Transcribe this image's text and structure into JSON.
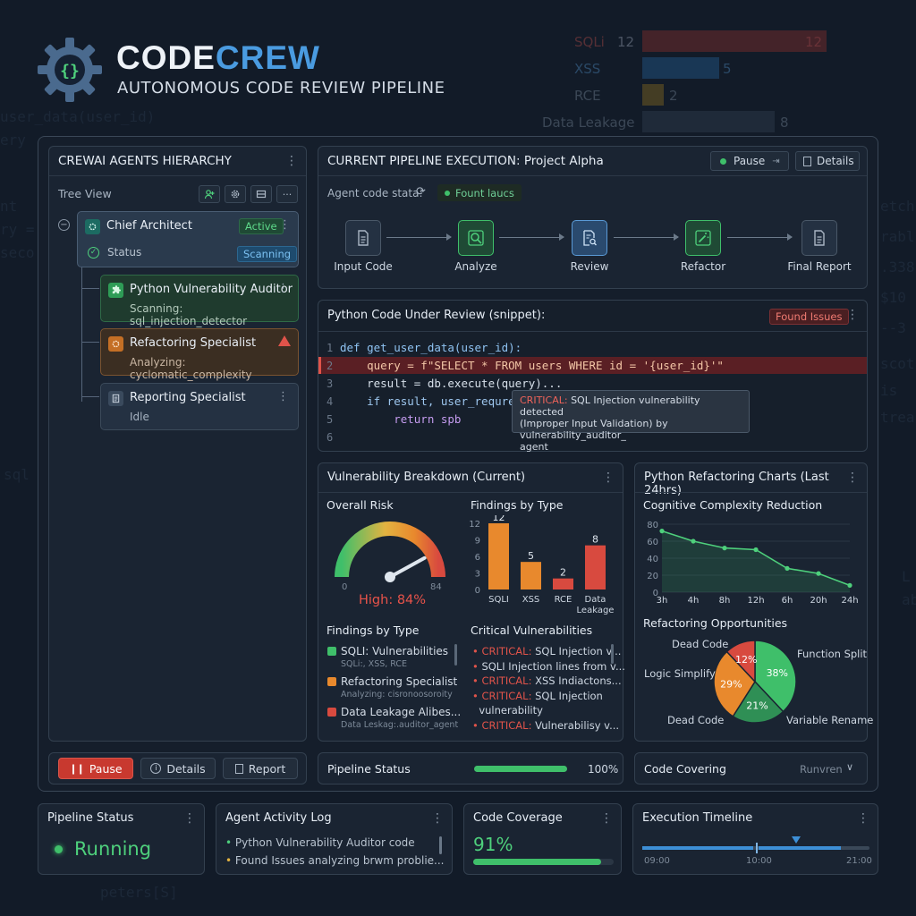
{
  "brand": {
    "name_a": "CODE",
    "name_b": "CREW",
    "tagline": "AUTONOMOUS CODE REVIEW PIPELINE"
  },
  "bg_chart": {
    "rows": [
      {
        "label": "SQLi",
        "value": "12",
        "value2": "12"
      },
      {
        "label": "XSS",
        "value": "5"
      },
      {
        "label": "RCE",
        "value": "2"
      },
      {
        "label": "Data Leakage",
        "value": "8"
      }
    ]
  },
  "bg_code": {
    "line1": "user_data(user_id)",
    "line2": "ery",
    "line3": "nt",
    "line4": "ry =",
    "line5": "seco",
    "line6": "sql",
    "line7": "peters[S]",
    "r1": "etch",
    "r2": "rabl",
    "r3": ".338",
    "r4": "$10",
    "r5": "--3",
    "r6": "scot",
    "r7": "is",
    "r8": "trea",
    "r9": "L",
    "r10": "ab"
  },
  "agents": {
    "title": "CREWAI AGENTS HIERARCHY",
    "tree_view": "Tree View",
    "chief": {
      "name": "Chief Architect",
      "badge": "Active",
      "status_label": "Status",
      "status_value": "Scanning"
    },
    "items": [
      {
        "name": "Python Vulnerability Auditor",
        "status": "Scanning: sql_injection_detector"
      },
      {
        "name": "Refactoring Specialist",
        "status": "Analyzing: cyclomatic_complexity"
      },
      {
        "name": "Reporting Specialist",
        "status": "Idle"
      }
    ]
  },
  "pipeline": {
    "title": "CURRENT PIPELINE EXECUTION: Project Alpha",
    "pause": "Pause",
    "details": "Details",
    "state_label": "Agent code stata:",
    "state_value": "Fount laucs",
    "steps": [
      "Input Code",
      "Analyze",
      "Review",
      "Refactor",
      "Final Report"
    ]
  },
  "code_review": {
    "title": "Python Code Under Review (snippet):",
    "badge": "Found Issues",
    "lines": [
      "def get_user_data(user_id):",
      "    query = f\"SELECT * FROM users WHERE id = '{user_id}'\"",
      "    result = db.execute(query)...",
      "    if result, user_requrese=",
      "        return spb",
      ""
    ],
    "numbers": [
      "1",
      "2",
      "3",
      "4",
      "5",
      "6"
    ],
    "tooltip_tag": "CRITICAL:",
    "tooltip_text": "SQL Injection vulnerability detected",
    "tooltip_line2": "(Improper Input Validation) by vulnerability_auditor_",
    "tooltip_line3": "agent"
  },
  "vuln": {
    "title": "Vulnerability Breakdown (Current)",
    "overall_label": "Overall Risk",
    "gauge_min": "0",
    "gauge_max": "84",
    "gauge_value": 0.84,
    "risk_text": "High: 84%",
    "findings_title": "Findings by Type",
    "bar_chart": {
      "type": "bar",
      "title": "Findings by Type",
      "categories": [
        "SQLI",
        "XSS",
        "RCE",
        "Data Leakage"
      ],
      "values": [
        12,
        5,
        2,
        8
      ],
      "ylim": [
        0,
        12
      ],
      "yticks": [
        "12",
        "9",
        "6",
        "3",
        "0"
      ],
      "colors": [
        "#e8892d",
        "#e8892d",
        "#d84a3f",
        "#d84a3f"
      ]
    },
    "legend_title": "Findings by Type",
    "legend": [
      {
        "name": "SQLI: Vulnerabilities",
        "sub": "SQLi:, XSS, RCE",
        "color": "#3fbf6a"
      },
      {
        "name": "Refactoring Specialist",
        "sub": "Analyzing: cisronoosoroity",
        "color": "#e8892d"
      },
      {
        "name": "Data Leakage Alibes...",
        "sub": "Data Leskag:.auditor_agent",
        "color": "#d84a3f"
      }
    ],
    "critical_title": "Critical Vulnerabilities",
    "critical": [
      {
        "tag": "CRITICAL:",
        "text": "SQL Injection v..."
      },
      {
        "tag": "",
        "text": "SQLI Injection lines from v..."
      },
      {
        "tag": "CRITICAL:",
        "text": "XSS Indiactons..."
      },
      {
        "tag": "CRITICAL:",
        "text": "SQL Injection"
      },
      {
        "tag": "",
        "text": "vulnerability"
      },
      {
        "tag": "CRITICAL:",
        "text": "Vulnerabilisy v..."
      }
    ]
  },
  "refactor": {
    "title": "Python Refactoring Charts (Last 24hrs)",
    "line_title": "Cognitive Complexity Reduction",
    "line_chart": {
      "type": "line",
      "categories": [
        "3h",
        "4h",
        "8h",
        "12h",
        "6h",
        "20h",
        "24h"
      ],
      "values": [
        72,
        60,
        52,
        50,
        28,
        22,
        8
      ],
      "ylim": [
        0,
        80
      ],
      "yticks": [
        "80",
        "60",
        "40",
        "20",
        "0"
      ]
    },
    "pie_title": "Refactoring Opportunities",
    "pie_chart": {
      "type": "pie",
      "slices": [
        {
          "label": "Function Split",
          "value": 38,
          "text": "38%",
          "color": "#3fbf6a"
        },
        {
          "label": "Variable Rename",
          "value": 21,
          "text": "21%",
          "color": "#2f8f55"
        },
        {
          "label": "Dead Code",
          "value": 29,
          "text": "29%",
          "color": "#e8892d"
        },
        {
          "label": "Dead Code",
          "value": 12,
          "text": "12%",
          "color": "#d84a3f"
        }
      ]
    },
    "labels": {
      "function_split": "Function Split",
      "variable_rename": "Variable Rename",
      "dead_code_bottom": "Dead Code",
      "logic_simplify": "Logic Simplify",
      "dead_code_top": "Dead Code"
    }
  },
  "controls": {
    "pause": "Pause",
    "details": "Details",
    "report": "Report"
  },
  "pipeline_status_bar": {
    "label": "Pipeline Status",
    "value": "100%",
    "fill": 1.0
  },
  "code_covering": {
    "label": "Code Covering",
    "value": "Runvren"
  },
  "bottom": {
    "status": {
      "title": "Pipeline Status",
      "value": "Running"
    },
    "log": {
      "title": "Agent Activity Log",
      "items": [
        "Python Vulnerability Auditor code",
        "Found Issues analyzing brwm problie..."
      ]
    },
    "coverage": {
      "title": "Code Coverage",
      "value": "91%",
      "fill": 0.91
    },
    "timeline": {
      "title": "Execution Timeline",
      "ticks": [
        "09:00",
        "10:00",
        "21:00"
      ]
    }
  }
}
